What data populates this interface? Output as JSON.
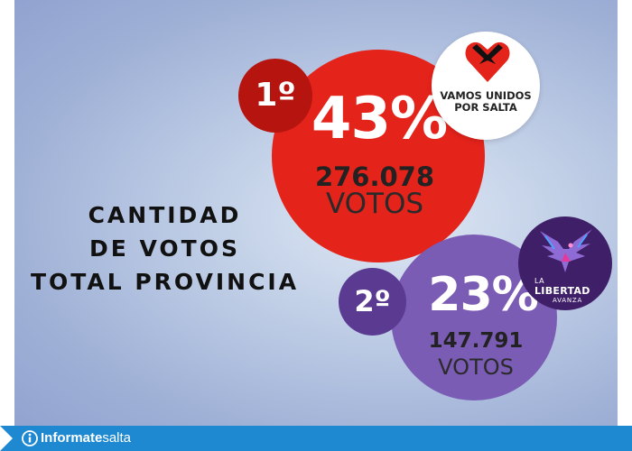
{
  "headline": {
    "lines": [
      "CANTIDAD",
      "DE VOTOS",
      "TOTAL PROVINCIA"
    ]
  },
  "first_place": {
    "rank": "1º",
    "percent": "43%",
    "votes": "276.078",
    "votes_label": "VOTOS",
    "party_logo_text": [
      "VAMOS UNIDOS",
      "POR SALTA"
    ],
    "color": "#e4231b",
    "icon": "vamos-unidos-heart-logo"
  },
  "second_place": {
    "rank": "2º",
    "percent": "23%",
    "votes": "147.791",
    "votes_label": "VOTOS",
    "party_logo_text": [
      "LA",
      "LIBERTAD",
      "AVANZA"
    ],
    "color": "#7b5cb5",
    "icon": "la-libertad-avanza-eagle-logo"
  },
  "footer": {
    "brand_bold": "Informate",
    "brand_light": "salta",
    "color": "#1e88d0",
    "icon": "info-circle-icon"
  }
}
